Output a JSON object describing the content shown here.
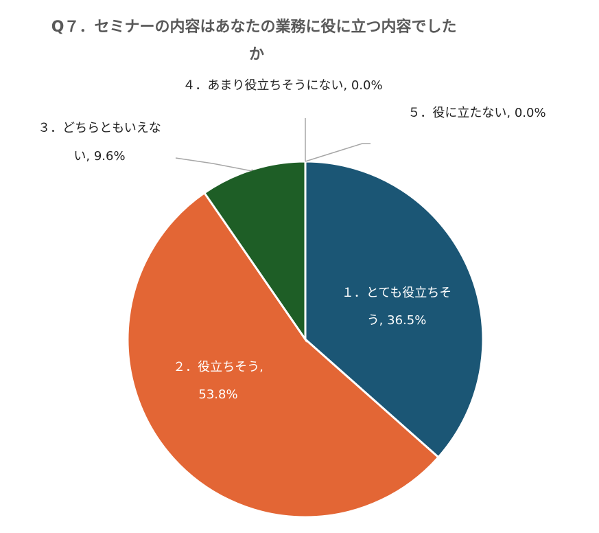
{
  "chart_data": {
    "type": "pie",
    "title_lines": [
      "Q７．セミナーの内容はあなたの業務に役に立つ内容でした",
      "か"
    ],
    "slices": [
      {
        "name": "１．とても役立ちそう",
        "value": 36.5,
        "display": "36.5%",
        "color": "#1b5675"
      },
      {
        "name": "２．役立ちそう",
        "value": 53.8,
        "display": "53.8%",
        "color": "#e36635"
      },
      {
        "name": "３．どちらともいえない",
        "value": 9.6,
        "display": "9.6%",
        "color": "#1e5e26"
      },
      {
        "name": "４．あまり役立ちそうにない",
        "value": 0.0,
        "display": "0.0%",
        "color": "#7f7f7f"
      },
      {
        "name": "５．役に立たない",
        "value": 0.0,
        "display": "0.0%",
        "color": "#bfbfbf"
      }
    ],
    "label_texts": [
      [
        "１．とても役立ちそ",
        "う, 36.5%"
      ],
      [
        "２．役立ちそう,",
        "53.8%"
      ],
      [
        "３．どちらともいえな",
        "い, 9.6%"
      ],
      [
        "４．あまり役立ちそうにない, 0.0%"
      ],
      [
        "５．役に立たない, 0.0%"
      ]
    ]
  }
}
